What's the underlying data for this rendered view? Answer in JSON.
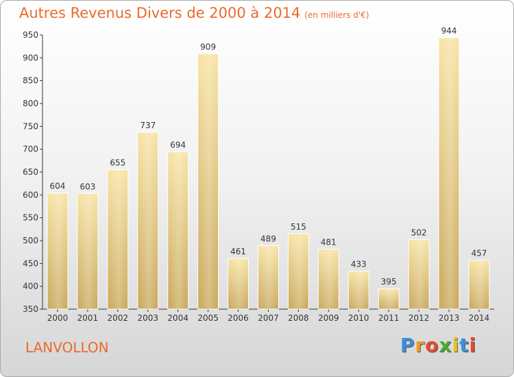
{
  "title": "Autres Revenus Divers de 2000 à 2014",
  "subtitle": "(en milliers d'€)",
  "commune": "LANVOLLON",
  "logo": {
    "letters": [
      "P",
      "r",
      "o",
      "x",
      "i",
      "t",
      "i"
    ],
    "colors": [
      "#3b8fd8",
      "#f09a1e",
      "#e64b2d",
      "#4caa2c",
      "#e9c21c",
      "#3b8fd8",
      "#e64b2d"
    ]
  },
  "chart_data": {
    "type": "bar",
    "categories": [
      "2000",
      "2001",
      "2002",
      "2003",
      "2004",
      "2005",
      "2006",
      "2007",
      "2008",
      "2009",
      "2010",
      "2011",
      "2012",
      "2013",
      "2014"
    ],
    "values": [
      604,
      603,
      655,
      737,
      694,
      909,
      461,
      489,
      515,
      481,
      433,
      395,
      502,
      944,
      457
    ],
    "ylim": [
      350,
      950
    ],
    "yticks": [
      350,
      400,
      450,
      500,
      550,
      600,
      650,
      700,
      750,
      800,
      850,
      900,
      950
    ],
    "grid": false,
    "bar_color": "#e8cf8a"
  }
}
